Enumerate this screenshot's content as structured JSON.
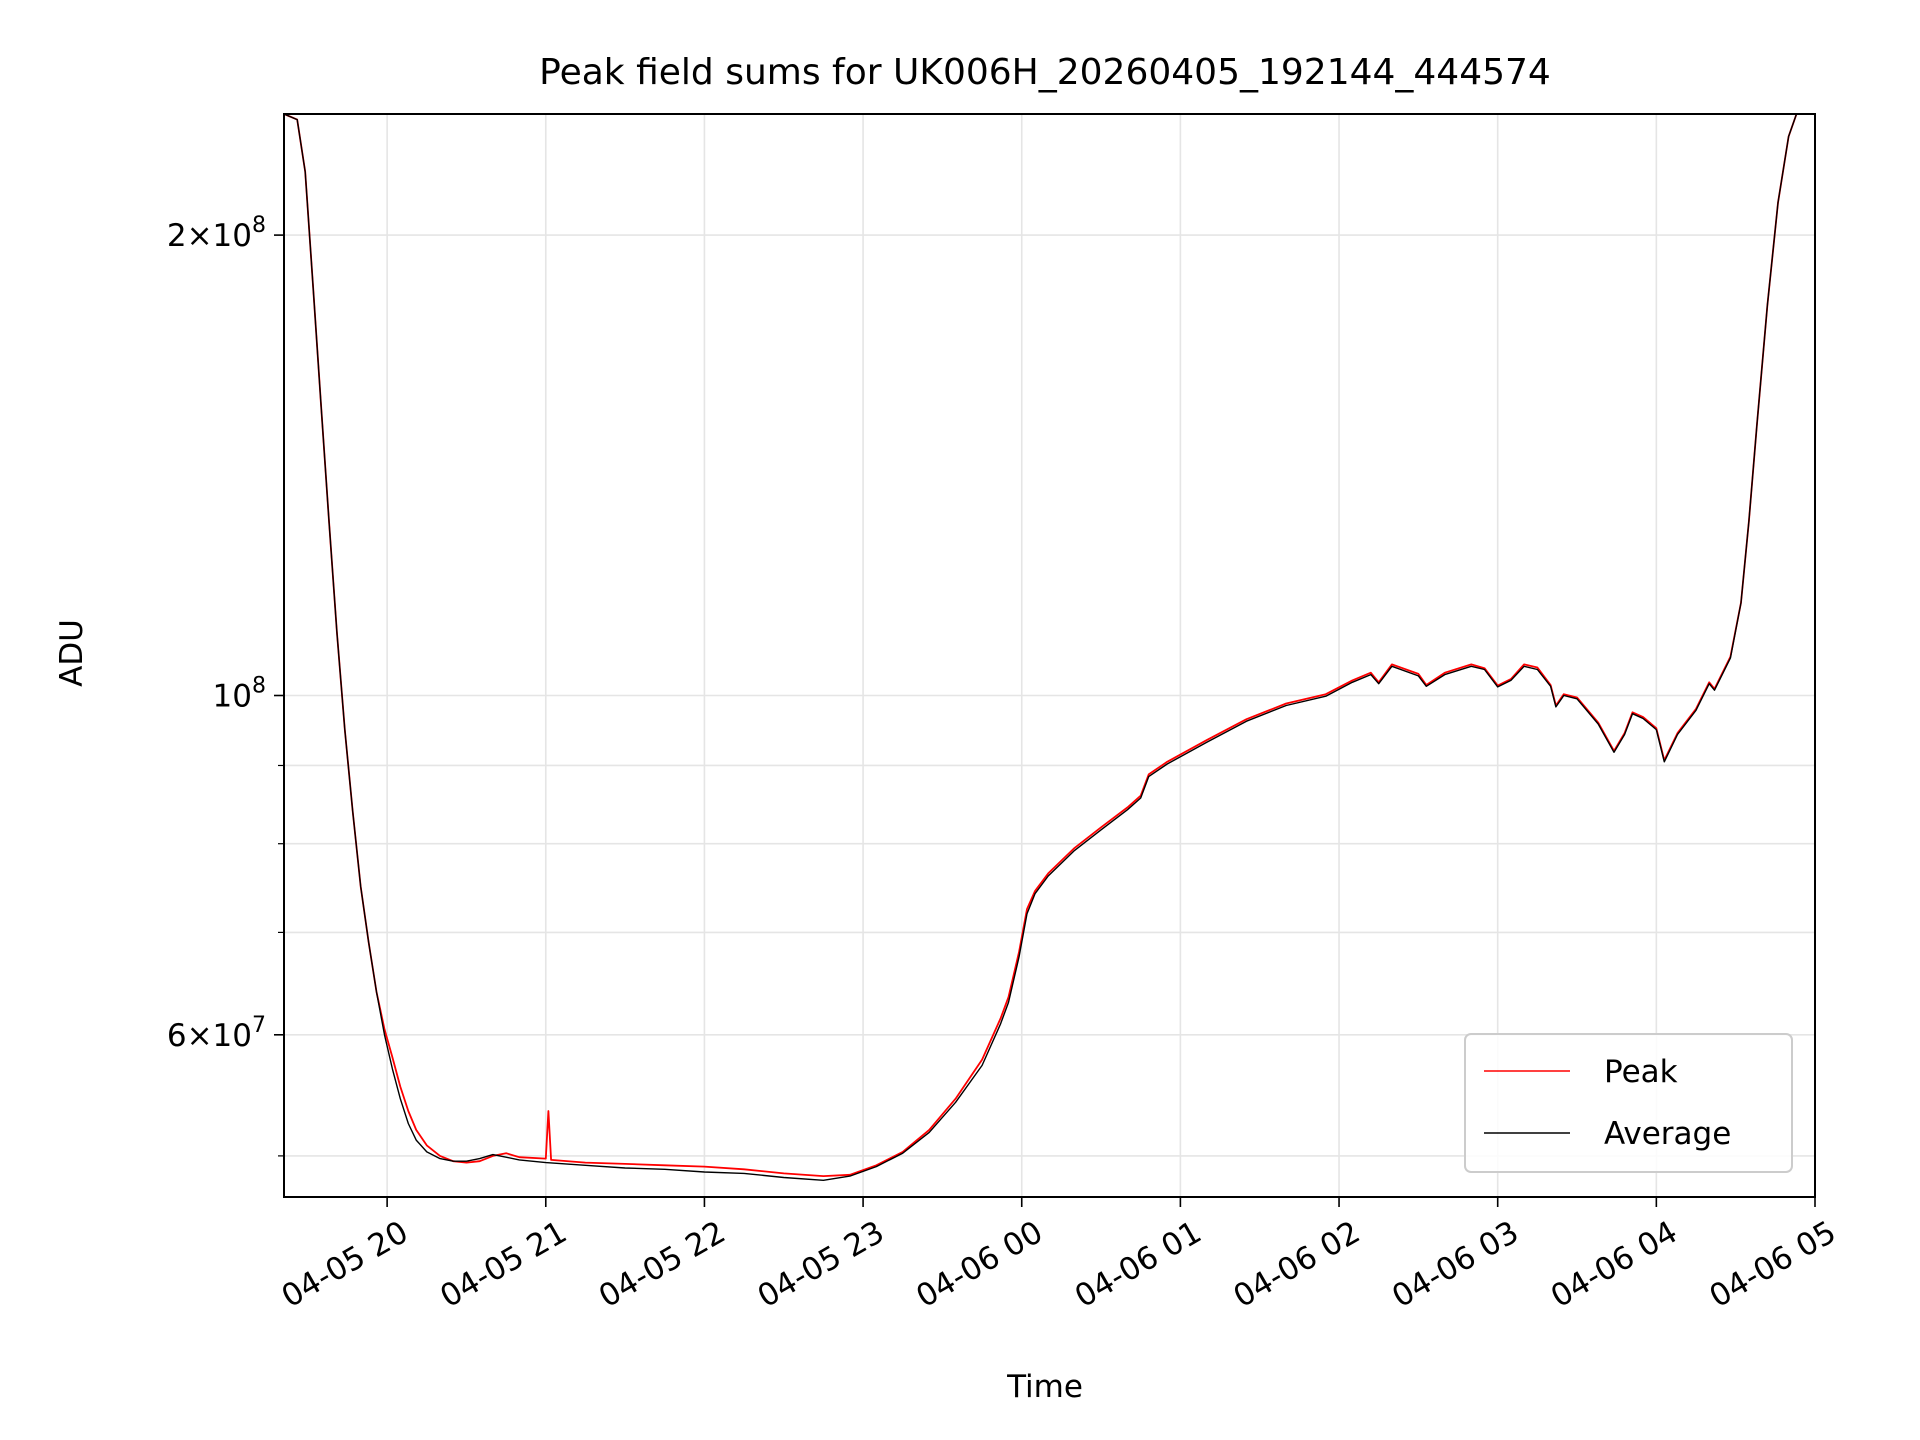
{
  "chart_data": {
    "type": "line",
    "title": "Peak field sums for UK006H_20260405_192144_444574",
    "xlabel": "Time",
    "ylabel": "ADU",
    "yscale": "log",
    "grid": true,
    "legend_position": "lower-right",
    "xlim": [
      "2026-04-05 19:21",
      "2026-04-06 05:00"
    ],
    "ylim": [
      47000000,
      240000000
    ],
    "x_ticks": [
      {
        "t": "2026-04-05 20:00",
        "label": "04-05 20"
      },
      {
        "t": "2026-04-05 21:00",
        "label": "04-05 21"
      },
      {
        "t": "2026-04-05 22:00",
        "label": "04-05 22"
      },
      {
        "t": "2026-04-05 23:00",
        "label": "04-05 23"
      },
      {
        "t": "2026-04-06 00:00",
        "label": "04-06 00"
      },
      {
        "t": "2026-04-06 01:00",
        "label": "04-06 01"
      },
      {
        "t": "2026-04-06 02:00",
        "label": "04-06 02"
      },
      {
        "t": "2026-04-06 03:00",
        "label": "04-06 03"
      },
      {
        "t": "2026-04-06 04:00",
        "label": "04-06 04"
      },
      {
        "t": "2026-04-06 05:00",
        "label": "04-06 05"
      }
    ],
    "y_ticks": [
      {
        "value": 200000000,
        "base": "2",
        "exp": "8",
        "sci": true
      },
      {
        "value": 100000000,
        "base": "10",
        "exp": "8",
        "sci": false
      },
      {
        "value": 60000000,
        "base": "6",
        "exp": "7",
        "sci": true
      }
    ],
    "y_minor_ticks": [
      50000000,
      70000000,
      80000000,
      90000000
    ],
    "series": [
      {
        "name": "Peak",
        "color": "#ff0000",
        "points": [
          [
            "2026-04-05 19:21",
            240000000
          ],
          [
            "2026-04-05 19:26",
            238000000
          ],
          [
            "2026-04-05 19:29",
            220000000
          ],
          [
            "2026-04-05 19:32",
            185000000
          ],
          [
            "2026-04-05 19:35",
            155000000
          ],
          [
            "2026-04-05 19:38",
            130000000
          ],
          [
            "2026-04-05 19:41",
            110000000
          ],
          [
            "2026-04-05 19:44",
            95000000
          ],
          [
            "2026-04-05 19:47",
            84000000
          ],
          [
            "2026-04-05 19:50",
            75000000
          ],
          [
            "2026-04-05 19:53",
            69000000
          ],
          [
            "2026-04-05 19:56",
            64000000
          ],
          [
            "2026-04-05 19:59",
            60500000
          ],
          [
            "2026-04-05 20:02",
            58000000
          ],
          [
            "2026-04-05 20:05",
            55500000
          ],
          [
            "2026-04-05 20:08",
            53500000
          ],
          [
            "2026-04-05 20:11",
            52000000
          ],
          [
            "2026-04-05 20:15",
            50800000
          ],
          [
            "2026-04-05 20:20",
            50000000
          ],
          [
            "2026-04-05 20:25",
            49600000
          ],
          [
            "2026-04-05 20:30",
            49500000
          ],
          [
            "2026-04-05 20:35",
            49600000
          ],
          [
            "2026-04-05 20:40",
            50000000
          ],
          [
            "2026-04-05 20:45",
            50200000
          ],
          [
            "2026-04-05 20:50",
            49900000
          ],
          [
            "2026-04-05 21:00",
            49800000
          ],
          [
            "2026-04-05 21:01",
            53500000
          ],
          [
            "2026-04-05 21:02",
            49700000
          ],
          [
            "2026-04-05 21:15",
            49500000
          ],
          [
            "2026-04-05 21:30",
            49400000
          ],
          [
            "2026-04-05 21:45",
            49300000
          ],
          [
            "2026-04-05 22:00",
            49200000
          ],
          [
            "2026-04-05 22:15",
            49000000
          ],
          [
            "2026-04-05 22:30",
            48700000
          ],
          [
            "2026-04-05 22:45",
            48500000
          ],
          [
            "2026-04-05 22:55",
            48600000
          ],
          [
            "2026-04-05 23:05",
            49300000
          ],
          [
            "2026-04-05 23:15",
            50300000
          ],
          [
            "2026-04-05 23:25",
            52000000
          ],
          [
            "2026-04-05 23:35",
            54500000
          ],
          [
            "2026-04-05 23:45",
            57800000
          ],
          [
            "2026-04-05 23:52",
            61500000
          ],
          [
            "2026-04-05 23:55",
            63500000
          ],
          [
            "2026-04-05 23:59",
            68000000
          ],
          [
            "2026-04-06 00:02",
            72500000
          ],
          [
            "2026-04-06 00:05",
            74500000
          ],
          [
            "2026-04-06 00:10",
            76500000
          ],
          [
            "2026-04-06 00:20",
            79500000
          ],
          [
            "2026-04-06 00:30",
            82000000
          ],
          [
            "2026-04-06 00:40",
            84500000
          ],
          [
            "2026-04-06 00:45",
            86000000
          ],
          [
            "2026-04-06 00:48",
            88800000
          ],
          [
            "2026-04-06 00:55",
            90500000
          ],
          [
            "2026-04-06 01:10",
            93500000
          ],
          [
            "2026-04-06 01:25",
            96500000
          ],
          [
            "2026-04-06 01:40",
            98800000
          ],
          [
            "2026-04-06 01:55",
            100200000
          ],
          [
            "2026-04-06 02:05",
            102300000
          ],
          [
            "2026-04-06 02:12",
            103500000
          ],
          [
            "2026-04-06 02:15",
            102000000
          ],
          [
            "2026-04-06 02:20",
            104800000
          ],
          [
            "2026-04-06 02:30",
            103300000
          ],
          [
            "2026-04-06 02:33",
            101600000
          ],
          [
            "2026-04-06 02:40",
            103500000
          ],
          [
            "2026-04-06 02:50",
            104800000
          ],
          [
            "2026-04-06 02:55",
            104200000
          ],
          [
            "2026-04-06 03:00",
            101500000
          ],
          [
            "2026-04-06 03:05",
            102500000
          ],
          [
            "2026-04-06 03:10",
            104800000
          ],
          [
            "2026-04-06 03:15",
            104300000
          ],
          [
            "2026-04-06 03:20",
            101600000
          ],
          [
            "2026-04-06 03:22",
            98500000
          ],
          [
            "2026-04-06 03:25",
            100200000
          ],
          [
            "2026-04-06 03:30",
            99700000
          ],
          [
            "2026-04-06 03:38",
            96000000
          ],
          [
            "2026-04-06 03:44",
            92000000
          ],
          [
            "2026-04-06 03:48",
            94500000
          ],
          [
            "2026-04-06 03:51",
            97500000
          ],
          [
            "2026-04-06 03:55",
            96800000
          ],
          [
            "2026-04-06 04:00",
            95200000
          ],
          [
            "2026-04-06 04:03",
            90700000
          ],
          [
            "2026-04-06 04:08",
            94500000
          ],
          [
            "2026-04-06 04:15",
            98000000
          ],
          [
            "2026-04-06 04:20",
            102000000
          ],
          [
            "2026-04-06 04:22",
            101000000
          ],
          [
            "2026-04-06 04:28",
            106000000
          ],
          [
            "2026-04-06 04:32",
            115000000
          ],
          [
            "2026-04-06 04:35",
            130000000
          ],
          [
            "2026-04-06 04:38",
            150000000
          ],
          [
            "2026-04-06 04:42",
            180000000
          ],
          [
            "2026-04-06 04:46",
            210000000
          ],
          [
            "2026-04-06 04:50",
            232000000
          ],
          [
            "2026-04-06 04:53",
            240000000
          ],
          [
            "2026-04-06 05:00",
            240000000
          ]
        ]
      },
      {
        "name": "Average",
        "color": "#000000",
        "points": [
          [
            "2026-04-05 19:21",
            240000000
          ],
          [
            "2026-04-05 19:26",
            238000000
          ],
          [
            "2026-04-05 19:29",
            220000000
          ],
          [
            "2026-04-05 19:32",
            185000000
          ],
          [
            "2026-04-05 19:35",
            155000000
          ],
          [
            "2026-04-05 19:38",
            130000000
          ],
          [
            "2026-04-05 19:41",
            110000000
          ],
          [
            "2026-04-05 19:44",
            95000000
          ],
          [
            "2026-04-05 19:47",
            84000000
          ],
          [
            "2026-04-05 19:50",
            75000000
          ],
          [
            "2026-04-05 19:53",
            69000000
          ],
          [
            "2026-04-05 19:56",
            64000000
          ],
          [
            "2026-04-05 19:59",
            60000000
          ],
          [
            "2026-04-05 20:02",
            57000000
          ],
          [
            "2026-04-05 20:05",
            54500000
          ],
          [
            "2026-04-05 20:08",
            52500000
          ],
          [
            "2026-04-05 20:11",
            51200000
          ],
          [
            "2026-04-05 20:15",
            50300000
          ],
          [
            "2026-04-05 20:20",
            49800000
          ],
          [
            "2026-04-05 20:25",
            49600000
          ],
          [
            "2026-04-05 20:30",
            49600000
          ],
          [
            "2026-04-05 20:35",
            49800000
          ],
          [
            "2026-04-05 20:40",
            50100000
          ],
          [
            "2026-04-05 20:45",
            49900000
          ],
          [
            "2026-04-05 20:50",
            49700000
          ],
          [
            "2026-04-05 21:00",
            49500000
          ],
          [
            "2026-04-05 21:15",
            49300000
          ],
          [
            "2026-04-05 21:30",
            49100000
          ],
          [
            "2026-04-05 21:45",
            49000000
          ],
          [
            "2026-04-05 22:00",
            48800000
          ],
          [
            "2026-04-05 22:15",
            48700000
          ],
          [
            "2026-04-05 22:30",
            48400000
          ],
          [
            "2026-04-05 22:45",
            48200000
          ],
          [
            "2026-04-05 22:55",
            48500000
          ],
          [
            "2026-04-05 23:05",
            49200000
          ],
          [
            "2026-04-05 23:15",
            50200000
          ],
          [
            "2026-04-05 23:25",
            51800000
          ],
          [
            "2026-04-05 23:35",
            54200000
          ],
          [
            "2026-04-05 23:45",
            57300000
          ],
          [
            "2026-04-05 23:52",
            61000000
          ],
          [
            "2026-04-05 23:55",
            63000000
          ],
          [
            "2026-04-05 23:59",
            67500000
          ],
          [
            "2026-04-06 00:02",
            72000000
          ],
          [
            "2026-04-06 00:05",
            74200000
          ],
          [
            "2026-04-06 00:10",
            76200000
          ],
          [
            "2026-04-06 00:20",
            79200000
          ],
          [
            "2026-04-06 00:30",
            81700000
          ],
          [
            "2026-04-06 00:40",
            84200000
          ],
          [
            "2026-04-06 00:45",
            85700000
          ],
          [
            "2026-04-06 00:48",
            88500000
          ],
          [
            "2026-04-06 00:55",
            90200000
          ],
          [
            "2026-04-06 01:10",
            93200000
          ],
          [
            "2026-04-06 01:25",
            96200000
          ],
          [
            "2026-04-06 01:40",
            98500000
          ],
          [
            "2026-04-06 01:55",
            99900000
          ],
          [
            "2026-04-06 02:05",
            102000000
          ],
          [
            "2026-04-06 02:12",
            103200000
          ],
          [
            "2026-04-06 02:15",
            101800000
          ],
          [
            "2026-04-06 02:20",
            104500000
          ],
          [
            "2026-04-06 02:30",
            103000000
          ],
          [
            "2026-04-06 02:33",
            101400000
          ],
          [
            "2026-04-06 02:40",
            103200000
          ],
          [
            "2026-04-06 02:50",
            104500000
          ],
          [
            "2026-04-06 02:55",
            104000000
          ],
          [
            "2026-04-06 03:00",
            101300000
          ],
          [
            "2026-04-06 03:05",
            102300000
          ],
          [
            "2026-04-06 03:10",
            104500000
          ],
          [
            "2026-04-06 03:15",
            104000000
          ],
          [
            "2026-04-06 03:20",
            101400000
          ],
          [
            "2026-04-06 03:22",
            98300000
          ],
          [
            "2026-04-06 03:25",
            100000000
          ],
          [
            "2026-04-06 03:30",
            99500000
          ],
          [
            "2026-04-06 03:38",
            95800000
          ],
          [
            "2026-04-06 03:44",
            91800000
          ],
          [
            "2026-04-06 03:48",
            94300000
          ],
          [
            "2026-04-06 03:51",
            97300000
          ],
          [
            "2026-04-06 03:55",
            96600000
          ],
          [
            "2026-04-06 04:00",
            95000000
          ],
          [
            "2026-04-06 04:03",
            90500000
          ],
          [
            "2026-04-06 04:08",
            94300000
          ],
          [
            "2026-04-06 04:15",
            97800000
          ],
          [
            "2026-04-06 04:20",
            101800000
          ],
          [
            "2026-04-06 04:22",
            100800000
          ],
          [
            "2026-04-06 04:28",
            105800000
          ],
          [
            "2026-04-06 04:32",
            115000000
          ],
          [
            "2026-04-06 04:35",
            130000000
          ],
          [
            "2026-04-06 04:38",
            150000000
          ],
          [
            "2026-04-06 04:42",
            180000000
          ],
          [
            "2026-04-06 04:46",
            210000000
          ],
          [
            "2026-04-06 04:50",
            232000000
          ],
          [
            "2026-04-06 04:53",
            240000000
          ],
          [
            "2026-04-06 05:00",
            240000000
          ]
        ]
      }
    ]
  }
}
